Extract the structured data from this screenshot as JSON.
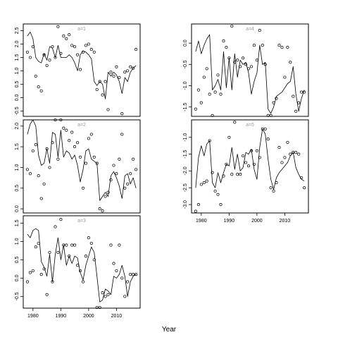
{
  "chart_data": {
    "type": "line",
    "xlabel": "Year",
    "x_tick_labels": [
      "1980",
      "1990",
      "2000",
      "2010"
    ],
    "panels": [
      {
        "label": "a=1",
        "ylim": [
          -0.7,
          2.75
        ],
        "yticks": [
          -0.5,
          0.0,
          0.5,
          1.0,
          1.5,
          2.0,
          2.5
        ],
        "ytick_labels": [
          "-0.5",
          "0.0",
          "0.5",
          "1.0",
          "1.5",
          "2.0",
          "2.5"
        ],
        "xlim": [
          1976.5,
          2018.5
        ],
        "line": {
          "x": [
            1978,
            1979,
            1980,
            1981,
            1982,
            1983,
            1984,
            1985,
            1986,
            1987,
            1988,
            1989,
            1990,
            1991,
            1992,
            1993,
            1994,
            1995,
            1996,
            1997,
            1998,
            1999,
            2000,
            2001,
            2002,
            2003,
            2004,
            2005,
            2006,
            2007,
            2008,
            2009,
            2010,
            2011,
            2012,
            2013,
            2014,
            2015,
            2016,
            2017
          ],
          "y": [
            2.3,
            2.45,
            2.2,
            1.5,
            1.35,
            1.3,
            1.65,
            1.4,
            1.9,
            1.85,
            1.5,
            1.95,
            1.5,
            1.5,
            1.5,
            1.6,
            1.5,
            1.3,
            1.0,
            1.6,
            1.75,
            1.7,
            1.6,
            1.45,
            0.6,
            0.45,
            0.6,
            0.5,
            -0.05,
            0.95,
            0.8,
            0.95,
            0.85,
            0.6,
            0.15,
            0.75,
            0.6,
            0.95,
            1.1,
            1.2
          ]
        },
        "points": {
          "x": [
            1978,
            1979,
            1980,
            1981,
            1982,
            1983,
            1984,
            1985,
            1986,
            1987,
            1988,
            1989,
            1990,
            1991,
            1992,
            1993,
            1994,
            1995,
            1996,
            1997,
            1998,
            1999,
            2000,
            2001,
            2002,
            2003,
            2004,
            2005,
            2006,
            2007,
            2008,
            2009,
            2010,
            2011,
            2012,
            2013,
            2014,
            2015,
            2016,
            2017
          ],
          "y": [
            1.7,
            1.5,
            1.9,
            0.8,
            0.4,
            0.25,
            1.6,
            1.2,
            1.4,
            1.9,
            1.5,
            2.65,
            1.65,
            2.3,
            2.2,
            2.35,
            1.95,
            1.9,
            1.6,
            1.05,
            1.7,
            1.95,
            2.0,
            1.8,
            1.7,
            0.3,
            0.6,
            0.1,
            0.6,
            -0.45,
            0.95,
            0.8,
            1.15,
            0.75,
            -0.6,
            0.95,
            1.0,
            1.15,
            1.1,
            1.8
          ]
        }
      },
      {
        "label": "a=2",
        "ylim": [
          -0.1,
          2.15
        ],
        "yticks": [
          0.0,
          0.5,
          1.0,
          1.5,
          2.0
        ],
        "ytick_labels": [
          "0.0",
          "0.5",
          "1.0",
          "1.5",
          "2.0"
        ],
        "xlim": [
          1976.5,
          2018.5
        ],
        "line": {
          "x": [
            1978,
            1979,
            1980,
            1981,
            1982,
            1983,
            1984,
            1985,
            1986,
            1987,
            1988,
            1989,
            1990,
            1991,
            1992,
            1993,
            1994,
            1995,
            1996,
            1997,
            1998,
            1999,
            2000,
            2001,
            2002,
            2003,
            2004,
            2005,
            2006,
            2007,
            2008,
            2009,
            2010,
            2011,
            2012,
            2013,
            2014,
            2015,
            2016,
            2017
          ],
          "y": [
            1.8,
            2.05,
            2.15,
            2.0,
            1.3,
            1.05,
            1.1,
            1.45,
            1.1,
            1.85,
            1.8,
            1.25,
            1.9,
            1.25,
            1.4,
            1.35,
            1.2,
            1.3,
            1.05,
            0.65,
            0.95,
            1.4,
            1.45,
            1.2,
            1.15,
            1.1,
            0.2,
            0.3,
            0.4,
            0.3,
            0.8,
            0.9,
            0.75,
            0.55,
            0.25,
            0.8,
            0.85,
            0.6,
            0.75,
            0.5
          ]
        },
        "points": {
          "x": [
            1978,
            1979,
            1980,
            1981,
            1982,
            1983,
            1984,
            1985,
            1986,
            1987,
            1988,
            1989,
            1990,
            1991,
            1992,
            1993,
            1994,
            1995,
            1996,
            1997,
            1998,
            1999,
            2000,
            2001,
            2002,
            2003,
            2004,
            2005,
            2006,
            2007,
            2008,
            2009,
            2010,
            2011,
            2012,
            2013,
            2014,
            2015,
            2016,
            2017
          ],
          "y": [
            0.95,
            0.85,
            1.4,
            1.55,
            0.8,
            0.25,
            0.6,
            1.45,
            1.0,
            1.6,
            2.15,
            1.2,
            2.15,
            1.95,
            1.9,
            1.65,
            1.85,
            1.5,
            1.6,
            1.25,
            0.5,
            1.1,
            1.7,
            1.8,
            1.25,
            1.1,
            0.0,
            -0.05,
            0.3,
            0.4,
            0.7,
            1.05,
            0.85,
            1.2,
            1.8,
            0.5,
            0.6,
            0.85,
            1.2,
            0.95
          ]
        }
      },
      {
        "label": "a=3",
        "ylim": [
          -0.82,
          1.7
        ],
        "yticks": [
          -0.5,
          0.0,
          0.5,
          1.0,
          1.5
        ],
        "ytick_labels": [
          "-0.5",
          "0.0",
          "0.5",
          "1.0",
          "1.5"
        ],
        "xlim": [
          1976.5,
          2018.5
        ],
        "line": {
          "x": [
            1978,
            1979,
            1980,
            1981,
            1982,
            1983,
            1984,
            1985,
            1986,
            1987,
            1988,
            1989,
            1990,
            1991,
            1992,
            1993,
            1994,
            1995,
            1996,
            1997,
            1998,
            1999,
            2000,
            2001,
            2002,
            2003,
            2004,
            2005,
            2006,
            2007,
            2008,
            2009,
            2010,
            2011,
            2012,
            2013,
            2014,
            2015,
            2016,
            2017
          ],
          "y": [
            1.2,
            1.1,
            1.3,
            1.35,
            1.3,
            0.45,
            0.3,
            0.05,
            0.65,
            -0.1,
            0.65,
            1.1,
            0.5,
            0.9,
            0.35,
            0.6,
            0.4,
            0.6,
            0.55,
            0.15,
            -0.05,
            0.35,
            0.6,
            0.85,
            0.7,
            0.05,
            -0.65,
            -0.6,
            -0.3,
            -0.35,
            -0.45,
            0.05,
            0.0,
            0.1,
            0.35,
            0.05,
            -0.5,
            -0.1,
            0.05,
            0.1
          ]
        },
        "points": {
          "x": [
            1978,
            1979,
            1980,
            1981,
            1982,
            1983,
            1984,
            1985,
            1986,
            1987,
            1988,
            1989,
            1990,
            1991,
            1992,
            1993,
            1994,
            1995,
            1996,
            1997,
            1998,
            1999,
            2000,
            2001,
            2002,
            2003,
            2004,
            2005,
            2006,
            2007,
            2008,
            2009,
            2010,
            2011,
            2012,
            2013,
            2014,
            2015,
            2016,
            2017
          ],
          "y": [
            -0.1,
            0.15,
            0.2,
            0.85,
            0.95,
            0.1,
            0.25,
            -0.45,
            0.7,
            -0.1,
            1.4,
            0.7,
            1.6,
            0.9,
            0.9,
            0.6,
            0.9,
            0.9,
            0.35,
            0.2,
            -0.1,
            0.6,
            1.1,
            0.95,
            0.5,
            -0.8,
            -0.8,
            -0.4,
            -0.5,
            -0.45,
            0.9,
            0.4,
            0.2,
            0.9,
            0.0,
            -0.5,
            -0.1,
            0.1,
            0.1,
            0.1
          ]
        }
      },
      {
        "label": "a=4",
        "ylim": [
          -1.72,
          0.45
        ],
        "yticks": [
          -1.5,
          -1.0,
          -0.5,
          0.0
        ],
        "ytick_labels": [
          "-1.5",
          "-1.0",
          "-0.5",
          "0.0"
        ],
        "xlim": [
          1976.5,
          2018.5
        ],
        "line": {
          "x": [
            1978,
            1979,
            1980,
            1981,
            1982,
            1983,
            1984,
            1985,
            1986,
            1987,
            1988,
            1989,
            1990,
            1991,
            1992,
            1993,
            1994,
            1995,
            1996,
            1997,
            1998,
            1999,
            2000,
            2001,
            2002,
            2003,
            2004,
            2005,
            2006,
            2007,
            2008,
            2009,
            2010,
            2011,
            2012,
            2013,
            2014,
            2015,
            2016,
            2017
          ],
          "y": [
            -0.2,
            0.05,
            -0.25,
            -0.05,
            0.1,
            0.2,
            -1.1,
            -1.0,
            -0.85,
            -1.1,
            -0.2,
            -1.05,
            -0.35,
            -1.1,
            -0.25,
            -0.8,
            -0.4,
            -0.5,
            -0.45,
            -0.7,
            -1.2,
            -0.9,
            -0.7,
            -0.05,
            -0.5,
            -0.45,
            -1.55,
            -1.65,
            -1.5,
            -1.25,
            -1.2,
            -1.15,
            -1.05,
            -0.95,
            -0.9,
            -0.55,
            -1.2,
            -1.6,
            -1.3,
            -1.1
          ]
        },
        "points": {
          "x": [
            1978,
            1979,
            1980,
            1981,
            1982,
            1983,
            1984,
            1985,
            1986,
            1987,
            1988,
            1989,
            1990,
            1991,
            1992,
            1993,
            1994,
            1995,
            1996,
            1997,
            1998,
            1999,
            2000,
            2001,
            2002,
            2003,
            2004,
            2005,
            2006,
            2007,
            2008,
            2009,
            2010,
            2011,
            2012,
            2013,
            2014,
            2015,
            2016,
            2017
          ],
          "y": [
            -1.55,
            -1.1,
            -1.4,
            -0.8,
            -0.6,
            -1.2,
            -1.7,
            -1.15,
            -0.75,
            -1.2,
            0.05,
            -0.1,
            -0.35,
            0.4,
            -0.45,
            -0.4,
            -0.55,
            -0.35,
            -0.5,
            -0.6,
            -0.55,
            -0.05,
            -0.4,
            0.3,
            -0.05,
            -0.5,
            -1.7,
            -1.7,
            -1.4,
            -1.3,
            -0.05,
            -0.1,
            -0.8,
            -0.1,
            -0.45,
            -1.25,
            -1.6,
            -1.4,
            -1.15,
            -1.15
          ]
        }
      },
      {
        "label": "a=5",
        "ylim": [
          -3.25,
          -0.48
        ],
        "yticks": [
          -3.0,
          -2.5,
          -2.0,
          -1.5,
          -1.0
        ],
        "ytick_labels": [
          "-3.0",
          "-2.5",
          "-2.0",
          "-1.5",
          "-1.0"
        ],
        "xlim": [
          1976.5,
          2018.5
        ],
        "line": {
          "x": [
            1978,
            1979,
            1980,
            1981,
            1982,
            1983,
            1984,
            1985,
            1986,
            1987,
            1988,
            1989,
            1990,
            1991,
            1992,
            1993,
            1994,
            1995,
            1996,
            1997,
            1998,
            1999,
            2000,
            2001,
            2002,
            2003,
            2004,
            2005,
            2006,
            2007,
            2008,
            2009,
            2010,
            2011,
            2012,
            2013,
            2014,
            2015,
            2016,
            2017
          ],
          "y": [
            -2.5,
            -1.6,
            -1.25,
            -1.55,
            -1.2,
            -1.1,
            -2.35,
            -2.5,
            -2.05,
            -2.35,
            -2.05,
            -1.8,
            -1.85,
            -1.3,
            -1.95,
            -1.5,
            -2.0,
            -1.9,
            -1.45,
            -1.5,
            -1.35,
            -1.95,
            -2.25,
            -1.3,
            -0.75,
            -0.9,
            -1.65,
            -2.25,
            -2.55,
            -2.2,
            -2.05,
            -1.95,
            -1.85,
            -1.75,
            -1.55,
            -1.45,
            -1.9,
            -2.1,
            -2.25,
            -2.3
          ]
        },
        "points": {
          "x": [
            1978,
            1979,
            1980,
            1981,
            1982,
            1983,
            1984,
            1985,
            1986,
            1987,
            1988,
            1989,
            1990,
            1991,
            1992,
            1993,
            1994,
            1995,
            1996,
            1997,
            1998,
            1999,
            2000,
            2001,
            2002,
            2003,
            2004,
            2005,
            2006,
            2007,
            2008,
            2009,
            2010,
            2011,
            2012,
            2013,
            2014,
            2015,
            2016,
            2017
          ],
          "y": [
            -3.2,
            -3.0,
            -2.4,
            -2.35,
            -2.3,
            -1.1,
            -2.05,
            -2.6,
            -2.7,
            -3.0,
            -2.15,
            -1.8,
            -1.0,
            -2.1,
            -0.55,
            -2.1,
            -2.1,
            -1.55,
            -1.75,
            -1.85,
            -1.4,
            -1.8,
            -1.4,
            -1.6,
            -0.75,
            -0.75,
            -1.05,
            -2.5,
            -2.6,
            -2.35,
            -1.3,
            -1.75,
            -1.6,
            -1.15,
            -1.5,
            -1.45,
            -1.45,
            -1.5,
            -2.2,
            -2.5
          ]
        }
      }
    ]
  }
}
